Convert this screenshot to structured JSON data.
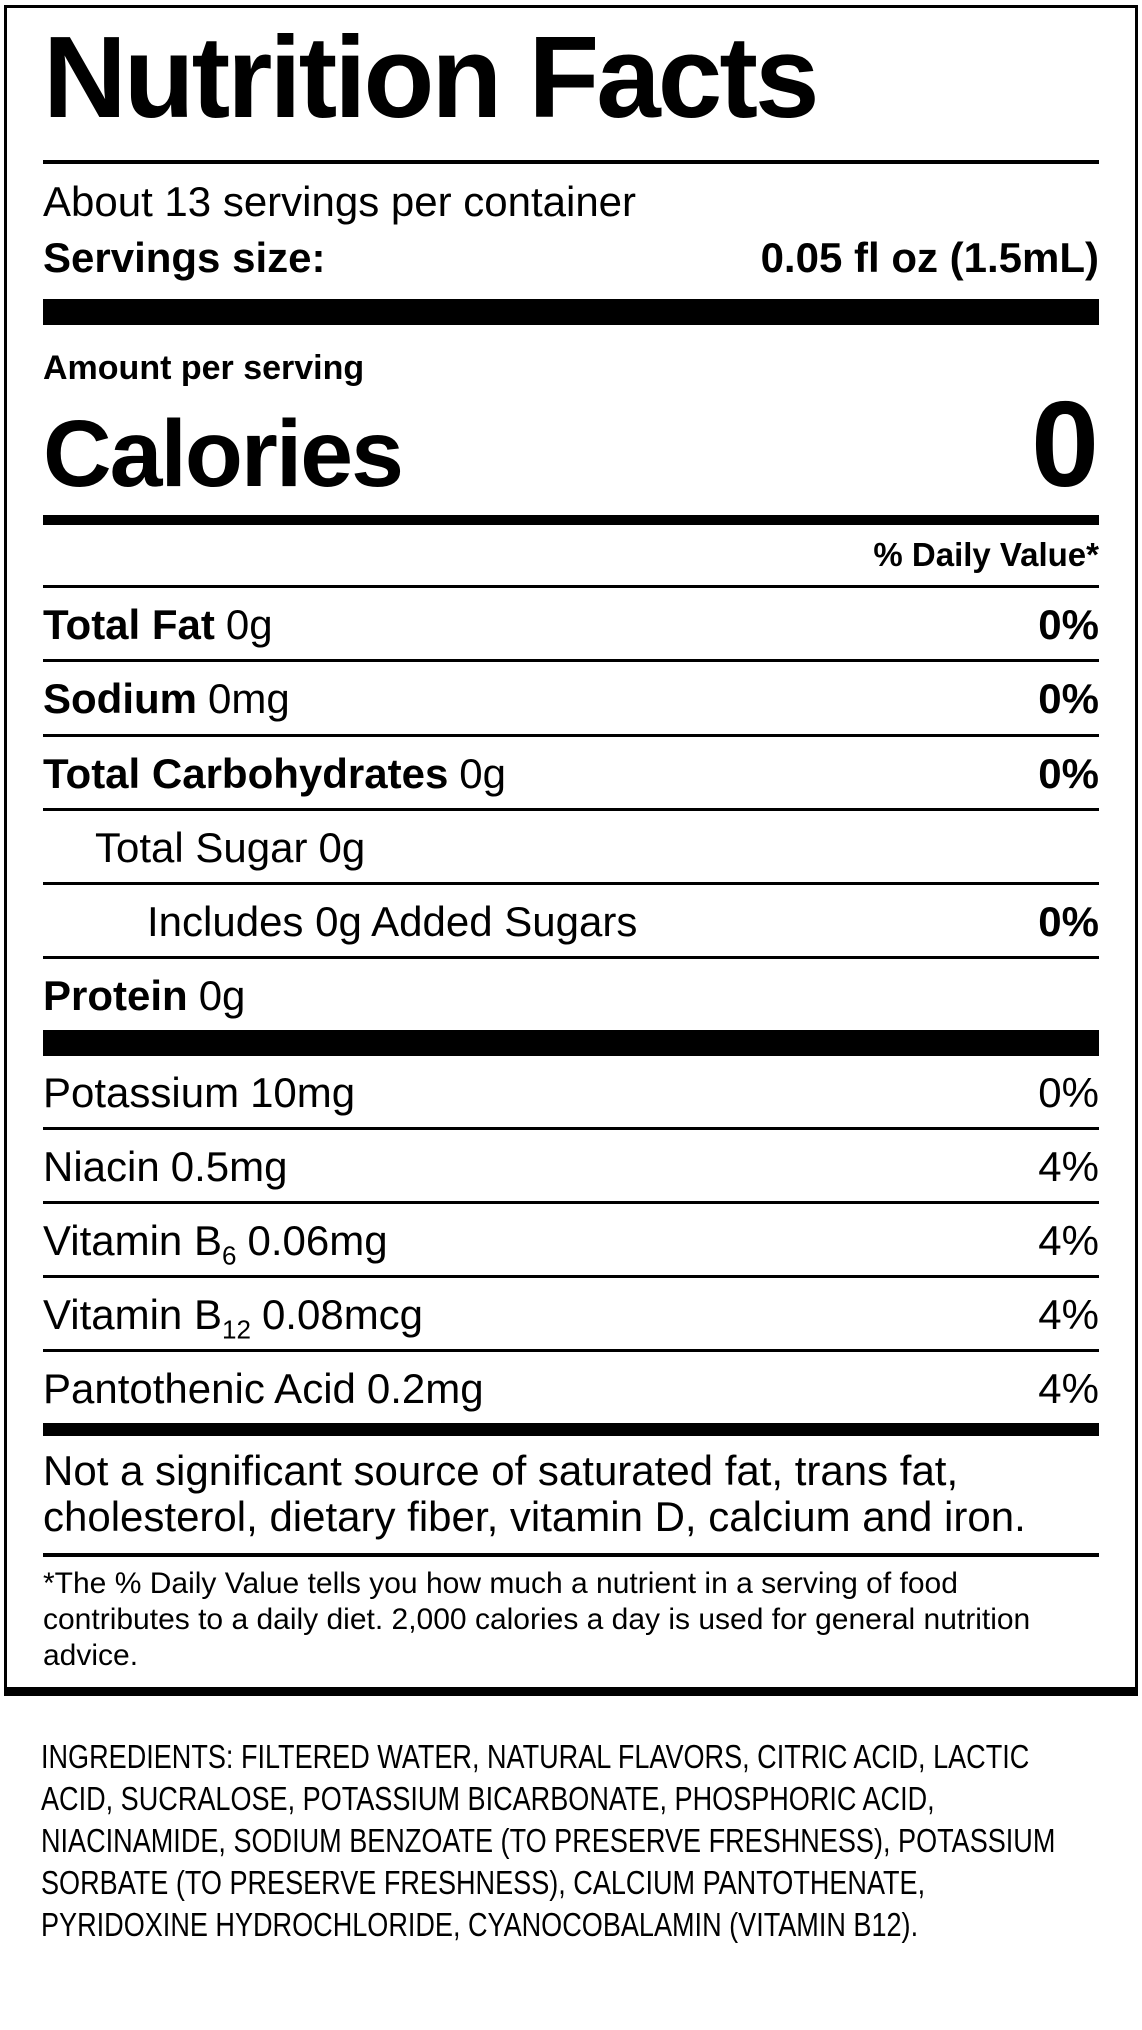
{
  "colors": {
    "text": "#000000",
    "background": "#ffffff"
  },
  "label": {
    "title": "Nutrition Facts",
    "servings_per_container": "About 13 servings per container",
    "serving_size_label": "Servings size:",
    "serving_size_value": "0.05 fl oz (1.5mL)",
    "amount_per_serving": "Amount per serving",
    "calories_label": "Calories",
    "calories_value": "0",
    "daily_value_header": "% Daily Value*",
    "main_rows": [
      {
        "label": "Total Fat",
        "label_bold": true,
        "sub": "",
        "amount": "0g",
        "percent": "0%",
        "percent_bold": true,
        "indent": 0
      },
      {
        "label": "Sodium",
        "label_bold": true,
        "sub": "",
        "amount": "0mg",
        "percent": "0%",
        "percent_bold": true,
        "indent": 0
      },
      {
        "label": "Total Carbohydrates",
        "label_bold": true,
        "sub": "",
        "amount": "0g",
        "percent": "0%",
        "percent_bold": true,
        "indent": 0
      },
      {
        "label": "Total Sugar",
        "label_bold": false,
        "sub": "",
        "amount": "0g",
        "percent": "",
        "percent_bold": false,
        "indent": 1
      },
      {
        "label": "Includes 0g Added Sugars",
        "label_bold": false,
        "sub": "",
        "amount": "",
        "percent": "0%",
        "percent_bold": true,
        "indent": 2
      },
      {
        "label": "Protein",
        "label_bold": true,
        "sub": "",
        "amount": "0g",
        "percent": "",
        "percent_bold": false,
        "indent": 0
      }
    ],
    "vitamin_rows": [
      {
        "label": "Potassium",
        "label_bold": false,
        "sub": "",
        "amount": "10mg",
        "percent": "0%",
        "percent_bold": false,
        "indent": 0
      },
      {
        "label": "Niacin",
        "label_bold": false,
        "sub": "",
        "amount": "0.5mg",
        "percent": "4%",
        "percent_bold": false,
        "indent": 0
      },
      {
        "label": "Vitamin B",
        "label_bold": false,
        "sub": "6",
        "amount": "0.06mg",
        "percent": "4%",
        "percent_bold": false,
        "indent": 0
      },
      {
        "label": "Vitamin B",
        "label_bold": false,
        "sub": "12",
        "amount": "0.08mcg",
        "percent": "4%",
        "percent_bold": false,
        "indent": 0
      },
      {
        "label": "Pantothenic Acid",
        "label_bold": false,
        "sub": "",
        "amount": "0.2mg",
        "percent": "4%",
        "percent_bold": false,
        "indent": 0
      }
    ],
    "not_significant_note": "Not a significant source of saturated fat, trans fat, cholesterol, dietary fiber, vitamin D, calcium and iron.",
    "daily_value_footnote": "*The % Daily Value tells you how much a nutrient in a serving of food contributes to a daily diet. 2,000 calories a day is used for general nutrition advice."
  },
  "ingredients": {
    "text": "INGREDIENTS: FILTERED WATER, NATURAL FLAVORS, CITRIC ACID, LACTIC ACID, SUCRALOSE, POTASSIUM BICARBONATE, PHOSPHORIC ACID, NIACINAMIDE, SODIUM BENZOATE (TO PRESERVE FRESHNESS), POTASSIUM SORBATE (TO PRESERVE FRESHNESS), CALCIUM PANTOTHENATE, PYRIDOXINE HYDROCHLORIDE, CYANOCOBALAMIN (VITAMIN B12)."
  }
}
